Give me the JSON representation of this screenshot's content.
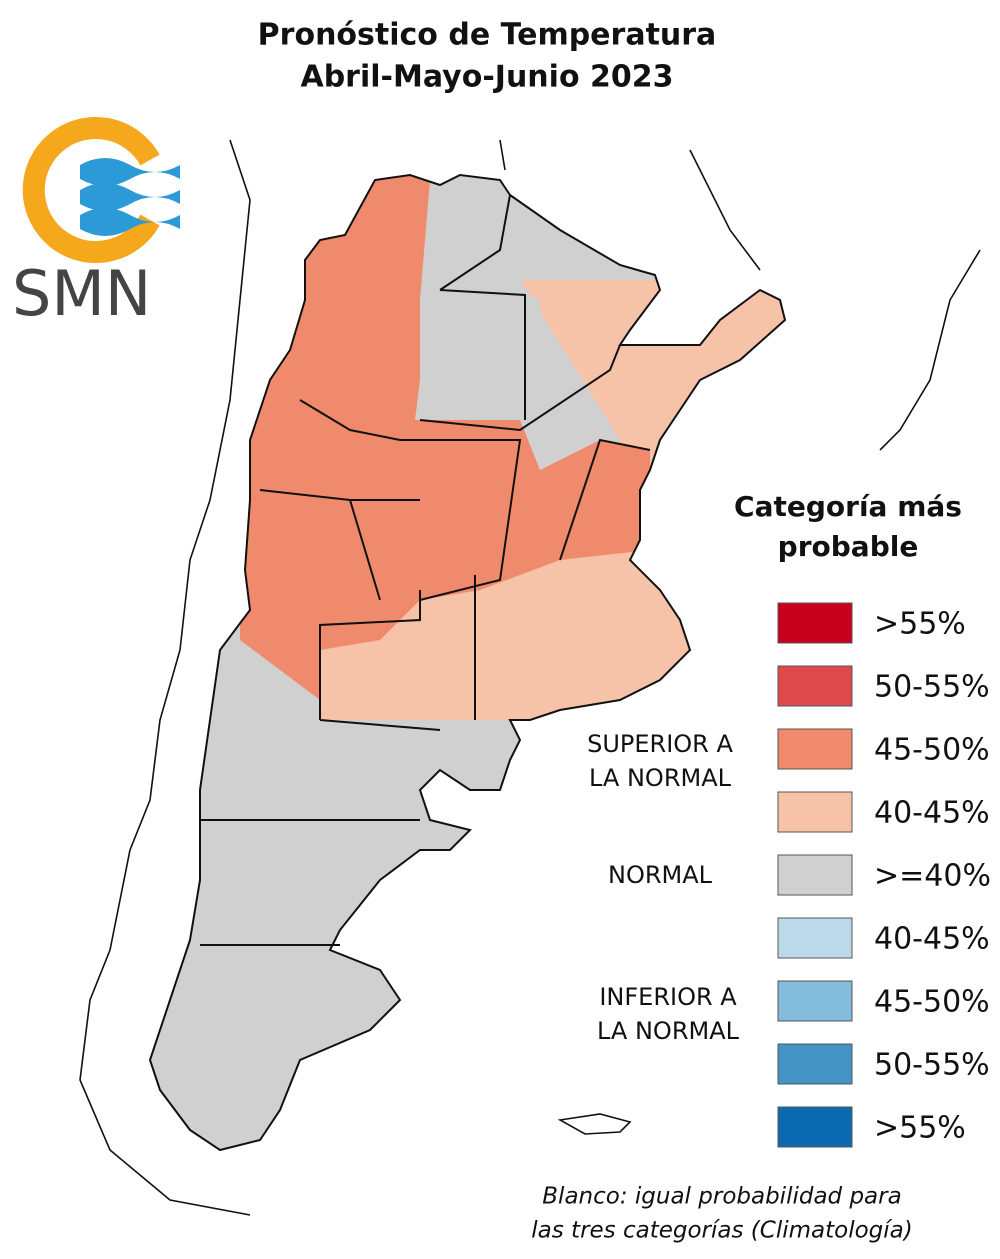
{
  "header": {
    "title": [
      "Pronóstico de Temperatura",
      "Abril-Mayo-Junio 2023"
    ]
  },
  "logo": {
    "text": "SMN"
  },
  "legend": {
    "title": [
      "Categoría más",
      "probable"
    ],
    "groups": [
      {
        "label": [
          "SUPERIOR A",
          "LA NORMAL"
        ],
        "items": [
          {
            "label": ">55%",
            "color": "#c8001e"
          },
          {
            "label": "50-55%",
            "color": "#de4a4c"
          },
          {
            "label": "45-50%",
            "color": "#ef8a6c"
          },
          {
            "label": "40-45%",
            "color": "#f6c3a8"
          }
        ]
      },
      {
        "label": [
          "NORMAL"
        ],
        "items": [
          {
            "label": ">=40%",
            "color": "#d0d0d0"
          }
        ]
      },
      {
        "label": [
          "INFERIOR A",
          "LA NORMAL"
        ],
        "items": [
          {
            "label": "40-45%",
            "color": "#bcd9ea"
          },
          {
            "label": "45-50%",
            "color": "#84bcdb"
          },
          {
            "label": "50-55%",
            "color": "#4393c4"
          },
          {
            "label": ">55%",
            "color": "#0b6aaf"
          }
        ]
      }
    ]
  },
  "footnote": [
    "Blanco: igual probabilidad para",
    "las tres categorías (Climatología)"
  ]
}
